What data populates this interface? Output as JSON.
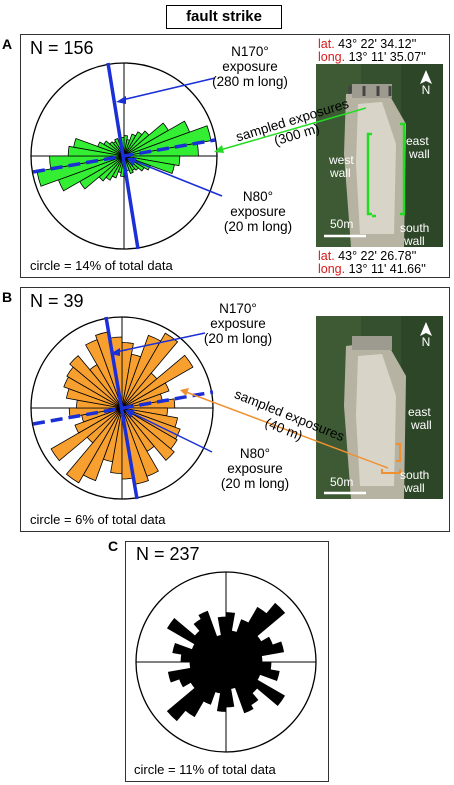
{
  "title": "fault strike",
  "panels": {
    "A": {
      "letter": "A",
      "n": "N = 156",
      "n170": "N170°",
      "n170_sub1": "exposure",
      "n170_sub2": "(280 m long)",
      "n80": "N80°",
      "n80_sub1": "exposure",
      "n80_sub2": "(20 m long)",
      "sampled1": "sampled exposures",
      "sampled2": "(300 m)",
      "circle_note": "circle = 14% of total data",
      "coord_top": {
        "lat_key": "lat.",
        "lat_val": "43° 22' 34.12''",
        "long_key": "long.",
        "long_val": "13° 11' 35.07''"
      },
      "coord_bottom": {
        "lat_key": "lat.",
        "lat_val": "43° 22' 26.78''",
        "long_key": "long.",
        "long_val": "13° 11' 41.66''"
      },
      "photo_labels": {
        "north": "N",
        "west1": "west",
        "west2": "wall",
        "east1": "east",
        "east2": "wall",
        "south1": "south",
        "south2": "wall",
        "scale": "50m"
      },
      "petal_color": "#33ee33"
    },
    "B": {
      "letter": "B",
      "n": "N = 39",
      "n170": "N170°",
      "n170_sub1": "exposure",
      "n170_sub2": "(20 m long)",
      "n80": "N80°",
      "n80_sub1": "exposure",
      "n80_sub2": "(20 m long)",
      "sampled1": "sampled exposures",
      "sampled2": "(40 m)",
      "circle_note": "circle = 6% of total data",
      "photo_labels": {
        "north": "N",
        "east1": "east",
        "east2": "wall",
        "south1": "south",
        "south2": "wall",
        "scale": "50m"
      },
      "petal_color": "#f7a030"
    },
    "C": {
      "letter": "C",
      "n": "N = 237",
      "circle_note": "circle = 11% of total data",
      "petal_color": "#000000"
    }
  },
  "colors": {
    "exposure_line": "#1a2fd6",
    "coord_key": "#d81b1b",
    "arrow_A": "#22dd22",
    "arrow_B": "#f09030"
  }
}
